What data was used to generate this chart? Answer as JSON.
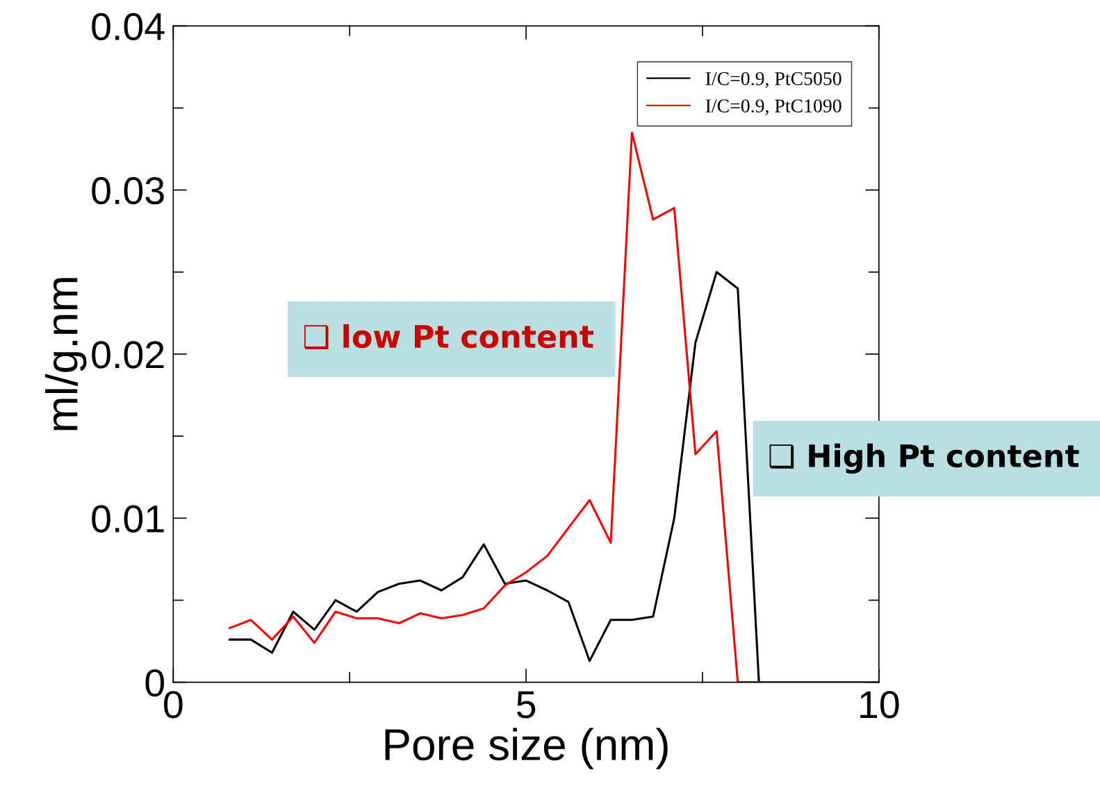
{
  "chart_data": {
    "type": "line",
    "xlabel": "Pore size (nm)",
    "ylabel": "ml/g.nm",
    "xlim": [
      0,
      10
    ],
    "ylim": [
      0,
      0.04
    ],
    "xticks": [
      0,
      {
        "value": 2.5,
        "label": null
      },
      5,
      {
        "value": 7.5,
        "label": null
      },
      10
    ],
    "yticks": [
      0,
      {
        "value": 0.005,
        "label": null
      },
      0.01,
      {
        "value": 0.015,
        "label": null
      },
      0.02,
      {
        "value": 0.025,
        "label": null
      },
      0.03,
      {
        "value": 0.035,
        "label": null
      },
      0.04
    ],
    "grid": false,
    "legend": "top right",
    "marker": "none",
    "line_style": "solid",
    "series": [
      {
        "name": "I/C=0.9, PtC5050",
        "color": "#000000",
        "x": [
          0.8,
          1.1,
          1.4,
          1.7,
          2.0,
          2.3,
          2.6,
          2.9,
          3.2,
          3.5,
          3.8,
          4.1,
          4.4,
          4.7,
          5.0,
          5.3,
          5.6,
          5.9,
          6.2,
          6.5,
          6.8,
          7.1,
          7.4,
          7.7,
          8.0,
          8.3,
          10
        ],
        "values": [
          0.0026,
          0.0026,
          0.0018,
          0.0043,
          0.0032,
          0.005,
          0.0043,
          0.0055,
          0.006,
          0.0062,
          0.0056,
          0.0064,
          0.0084,
          0.006,
          0.0062,
          0.0056,
          0.0049,
          0.0013,
          0.0038,
          0.0038,
          0.004,
          0.01,
          0.0207,
          0.025,
          0.024,
          0,
          0
        ]
      },
      {
        "name": "I/C=0.9, PtC1090",
        "color": "#ff0000",
        "x": [
          0.8,
          1.1,
          1.4,
          1.7,
          2.0,
          2.3,
          2.6,
          2.9,
          3.2,
          3.5,
          3.8,
          4.1,
          4.4,
          4.7,
          5.0,
          5.3,
          5.6,
          5.9,
          6.2,
          6.5,
          6.8,
          7.1,
          7.4,
          7.7,
          8.0,
          10
        ],
        "values": [
          0.0033,
          0.0038,
          0.0026,
          0.004,
          0.0024,
          0.0043,
          0.0039,
          0.0039,
          0.0036,
          0.0042,
          0.0039,
          0.0041,
          0.0045,
          0.0059,
          0.0067,
          0.0077,
          0.0094,
          0.0111,
          0.0085,
          0.0335,
          0.0282,
          0.0289,
          0.0139,
          0.0153,
          0,
          0
        ]
      }
    ],
    "annotations": [
      "❑ low Pt content",
      "❑ High Pt content"
    ]
  }
}
